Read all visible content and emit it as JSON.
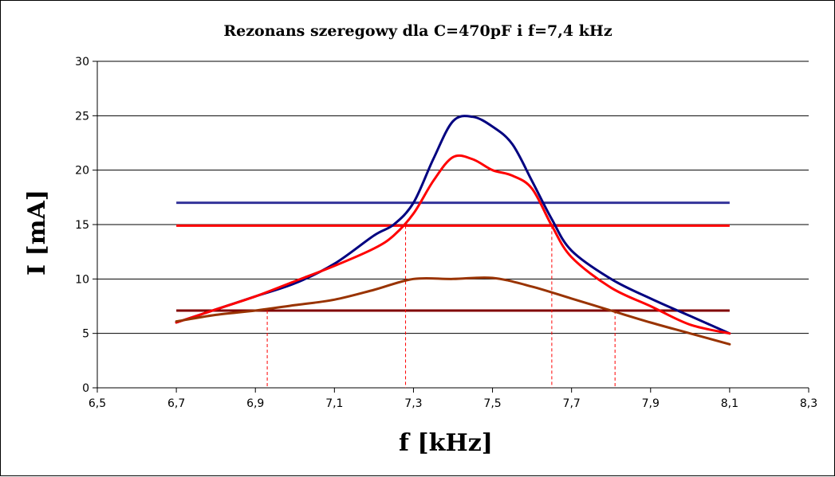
{
  "chart_data": {
    "type": "line",
    "title": "Rezonans szeregowy dla C=470pF i f=7,4 kHz",
    "xlabel": "f [kHz]",
    "ylabel": "I [mA]",
    "xlim": [
      6.5,
      8.3
    ],
    "ylim": [
      0,
      30
    ],
    "x_ticks": [
      "6,5",
      "6,7",
      "6,9",
      "7,1",
      "7,3",
      "7,5",
      "7,7",
      "7,9",
      "8,1",
      "8,3"
    ],
    "y_ticks": [
      "0",
      "5",
      "10",
      "15",
      "20",
      "25",
      "30"
    ],
    "grid": "horizontal",
    "legend": "none",
    "series": [
      {
        "color": "#000080",
        "x": [
          6.7,
          6.8,
          6.9,
          7.0,
          7.1,
          7.2,
          7.25,
          7.3,
          7.35,
          7.4,
          7.45,
          7.5,
          7.55,
          7.6,
          7.65,
          7.7,
          7.8,
          7.9,
          8.0,
          8.1
        ],
        "y": [
          6.0,
          7.2,
          8.4,
          9.6,
          11.4,
          14.0,
          15.0,
          17.0,
          21.0,
          24.5,
          24.9,
          24.0,
          22.4,
          19.0,
          15.5,
          12.6,
          10.0,
          8.2,
          6.6,
          5.0
        ]
      },
      {
        "color": "#ff0000",
        "x": [
          6.7,
          6.8,
          6.9,
          7.0,
          7.1,
          7.2,
          7.25,
          7.3,
          7.35,
          7.4,
          7.45,
          7.5,
          7.55,
          7.6,
          7.65,
          7.7,
          7.8,
          7.9,
          8.0,
          8.1
        ],
        "y": [
          6.0,
          7.2,
          8.4,
          9.8,
          11.2,
          12.8,
          14.0,
          16.0,
          19.0,
          21.2,
          21.0,
          20.0,
          19.5,
          18.3,
          14.9,
          12.0,
          9.2,
          7.5,
          5.8,
          5.0
        ]
      },
      {
        "color": "#993300",
        "x": [
          6.7,
          6.8,
          6.9,
          7.0,
          7.1,
          7.2,
          7.3,
          7.4,
          7.5,
          7.6,
          7.7,
          7.8,
          7.9,
          8.0,
          8.1
        ],
        "y": [
          6.1,
          6.7,
          7.1,
          7.6,
          8.1,
          9.0,
          10.0,
          10.0,
          10.1,
          9.3,
          8.2,
          7.1,
          6.0,
          5.0,
          4.0
        ]
      }
    ],
    "reference_lines": [
      {
        "y": 17.0,
        "x_range": [
          6.7,
          8.1
        ],
        "color": "#333399"
      },
      {
        "y": 14.9,
        "x_range": [
          6.7,
          8.1
        ],
        "color": "#ff0000"
      },
      {
        "y": 7.1,
        "x_range": [
          6.7,
          8.1
        ],
        "color": "#800000"
      }
    ],
    "marker_lines": [
      {
        "x": 6.93,
        "y_top": 7.1
      },
      {
        "x": 7.28,
        "y_top": 14.9
      },
      {
        "x": 7.65,
        "y_top": 14.9
      },
      {
        "x": 7.81,
        "y_top": 7.1
      }
    ],
    "marker_color": "#ff0000"
  }
}
